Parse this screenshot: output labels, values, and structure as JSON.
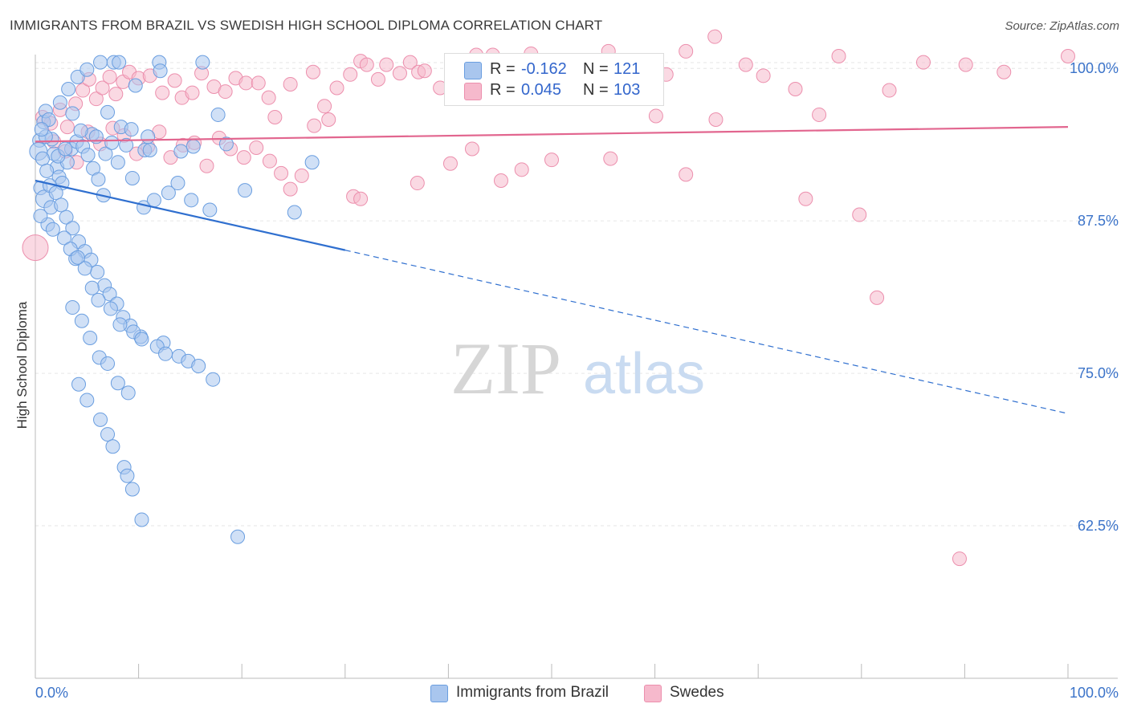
{
  "header": {
    "title": "IMMIGRANTS FROM BRAZIL VS SWEDISH HIGH SCHOOL DIPLOMA CORRELATION CHART",
    "source": "Source: ZipAtlas.com"
  },
  "watermark": {
    "zip": "ZIP",
    "atlas": "atlas"
  },
  "legend": {
    "rows": [
      {
        "r_label": "R =",
        "r_value": "-0.162",
        "n_label": "N =",
        "n_value": "121"
      },
      {
        "r_label": "R =",
        "r_value": "0.045",
        "n_label": "N =",
        "n_value": "103"
      }
    ]
  },
  "chart_data": {
    "type": "scatter",
    "ylabel": "High School Diploma",
    "xlabel": "",
    "xlim": [
      0,
      100
    ],
    "ylim": [
      50,
      101
    ],
    "x_tick_labels": [
      "0.0%",
      "100.0%"
    ],
    "y_ticks": [
      100,
      87.5,
      75,
      62.5
    ],
    "y_tick_labels": [
      "100.0%",
      "87.5%",
      "75.0%",
      "62.5%"
    ],
    "grid": true,
    "colors": {
      "blue_fill": "#a9c6ee",
      "blue_stroke": "#6a9ee0",
      "blue_line": "#2f6fcf",
      "pink_fill": "#f6b9cc",
      "pink_stroke": "#ec8fad",
      "pink_line": "#e2668f",
      "grid": "#e6e6e6",
      "tick_text": "#3b73c9"
    },
    "series": [
      {
        "name": "Immigrants from Brazil",
        "trend": {
          "x": [
            0,
            30
          ],
          "y": [
            90.8,
            85.1
          ],
          "dashed_to": [
            100,
            71.7
          ]
        },
        "points": [
          [
            0.4,
            94.1
          ],
          [
            0.8,
            95.6
          ],
          [
            1.0,
            96.5
          ],
          [
            1.3,
            95.8
          ],
          [
            1.6,
            94.2
          ],
          [
            1.8,
            93.0
          ],
          [
            2.1,
            91.9
          ],
          [
            2.3,
            91.1
          ],
          [
            0.5,
            90.2
          ],
          [
            0.9,
            89.3
          ],
          [
            1.5,
            88.6
          ],
          [
            2.6,
            90.6
          ],
          [
            3.1,
            92.3
          ],
          [
            3.5,
            93.4
          ],
          [
            4.0,
            94.0
          ],
          [
            4.6,
            93.6
          ],
          [
            5.1,
            92.9
          ],
          [
            5.6,
            91.8
          ],
          [
            6.1,
            90.9
          ],
          [
            6.6,
            89.6
          ],
          [
            0.3,
            93.2
          ],
          [
            0.7,
            92.6
          ],
          [
            1.1,
            91.6
          ],
          [
            1.4,
            90.4
          ],
          [
            2.0,
            89.8
          ],
          [
            2.5,
            88.8
          ],
          [
            3.0,
            87.8
          ],
          [
            3.6,
            86.9
          ],
          [
            4.2,
            85.8
          ],
          [
            4.8,
            85.0
          ],
          [
            5.4,
            84.3
          ],
          [
            6.0,
            83.3
          ],
          [
            6.7,
            82.2
          ],
          [
            7.2,
            81.5
          ],
          [
            7.9,
            80.7
          ],
          [
            8.5,
            79.6
          ],
          [
            9.2,
            78.9
          ],
          [
            10.2,
            78.0
          ],
          [
            12.4,
            77.5
          ],
          [
            13.9,
            76.4
          ],
          [
            2.4,
            97.2
          ],
          [
            3.2,
            98.3
          ],
          [
            4.1,
            99.3
          ],
          [
            5.0,
            99.9
          ],
          [
            6.3,
            100.5
          ],
          [
            7.6,
            100.5
          ],
          [
            8.1,
            100.5
          ],
          [
            12.0,
            100.5
          ],
          [
            16.2,
            100.5
          ],
          [
            9.7,
            98.6
          ],
          [
            12.1,
            99.8
          ],
          [
            7.0,
            96.4
          ],
          [
            8.3,
            95.2
          ],
          [
            9.3,
            95.0
          ],
          [
            10.6,
            93.3
          ],
          [
            11.1,
            93.3
          ],
          [
            14.1,
            93.2
          ],
          [
            15.3,
            93.6
          ],
          [
            18.5,
            93.8
          ],
          [
            17.7,
            96.2
          ],
          [
            3.9,
            84.4
          ],
          [
            4.8,
            83.6
          ],
          [
            5.5,
            82.0
          ],
          [
            6.1,
            81.0
          ],
          [
            7.3,
            80.3
          ],
          [
            8.2,
            79.0
          ],
          [
            9.5,
            78.4
          ],
          [
            10.3,
            77.8
          ],
          [
            11.8,
            77.2
          ],
          [
            12.6,
            76.6
          ],
          [
            14.8,
            76.0
          ],
          [
            15.8,
            75.6
          ],
          [
            17.2,
            74.5
          ],
          [
            3.6,
            80.4
          ],
          [
            4.5,
            79.3
          ],
          [
            5.3,
            77.9
          ],
          [
            6.2,
            76.3
          ],
          [
            7.0,
            75.8
          ],
          [
            8.0,
            74.2
          ],
          [
            9.0,
            73.4
          ],
          [
            4.2,
            74.1
          ],
          [
            5.0,
            72.8
          ],
          [
            6.3,
            71.2
          ],
          [
            7.0,
            70.0
          ],
          [
            7.5,
            69.0
          ],
          [
            8.6,
            67.3
          ],
          [
            8.9,
            66.6
          ],
          [
            9.4,
            65.5
          ],
          [
            10.3,
            63.0
          ],
          [
            19.6,
            61.6
          ],
          [
            5.5,
            94.6
          ],
          [
            6.8,
            93.0
          ],
          [
            8.0,
            92.3
          ],
          [
            9.4,
            91.0
          ],
          [
            10.5,
            88.6
          ],
          [
            11.5,
            89.2
          ],
          [
            12.9,
            89.8
          ],
          [
            13.8,
            90.6
          ],
          [
            15.1,
            89.2
          ],
          [
            16.9,
            88.4
          ],
          [
            20.3,
            90.0
          ],
          [
            25.1,
            88.2
          ],
          [
            26.8,
            92.3
          ],
          [
            2.8,
            86.1
          ],
          [
            3.4,
            85.2
          ],
          [
            4.1,
            84.5
          ],
          [
            1.2,
            87.2
          ],
          [
            1.7,
            86.8
          ],
          [
            0.5,
            87.9
          ],
          [
            2.2,
            92.8
          ],
          [
            2.9,
            93.4
          ],
          [
            1.0,
            94.4
          ],
          [
            0.6,
            95.0
          ],
          [
            3.6,
            96.3
          ],
          [
            4.4,
            94.9
          ],
          [
            5.9,
            94.4
          ],
          [
            7.4,
            93.9
          ],
          [
            8.8,
            93.7
          ],
          [
            10.9,
            94.4
          ]
        ]
      },
      {
        "name": "Swedes",
        "trend": {
          "x": [
            0,
            100
          ],
          "y": [
            94.0,
            95.2
          ]
        },
        "points": [
          [
            0.7,
            96.0
          ],
          [
            1.5,
            95.5
          ],
          [
            2.4,
            96.6
          ],
          [
            3.1,
            95.2
          ],
          [
            3.9,
            97.1
          ],
          [
            4.6,
            98.2
          ],
          [
            5.2,
            99.1
          ],
          [
            5.9,
            97.5
          ],
          [
            6.5,
            98.4
          ],
          [
            7.2,
            99.3
          ],
          [
            7.8,
            97.9
          ],
          [
            8.5,
            98.9
          ],
          [
            9.1,
            99.7
          ],
          [
            10.0,
            99.2
          ],
          [
            11.1,
            99.4
          ],
          [
            12.3,
            98.0
          ],
          [
            13.5,
            99.0
          ],
          [
            14.2,
            97.6
          ],
          [
            15.2,
            98.0
          ],
          [
            16.1,
            99.6
          ],
          [
            17.3,
            98.5
          ],
          [
            18.4,
            98.1
          ],
          [
            19.4,
            99.2
          ],
          [
            20.4,
            98.8
          ],
          [
            21.6,
            98.8
          ],
          [
            22.6,
            97.6
          ],
          [
            23.2,
            96.0
          ],
          [
            24.7,
            98.7
          ],
          [
            26.9,
            99.7
          ],
          [
            28.4,
            95.8
          ],
          [
            29.2,
            98.4
          ],
          [
            30.5,
            99.5
          ],
          [
            31.5,
            100.6
          ],
          [
            32.1,
            100.3
          ],
          [
            33.2,
            99.1
          ],
          [
            34.0,
            100.3
          ],
          [
            35.3,
            99.6
          ],
          [
            36.3,
            100.5
          ],
          [
            37.1,
            99.7
          ],
          [
            37.7,
            99.8
          ],
          [
            39.2,
            98.4
          ],
          [
            41.0,
            100.3
          ],
          [
            42.7,
            101.1
          ],
          [
            44.3,
            101.1
          ],
          [
            46.8,
            99.5
          ],
          [
            48.0,
            101.2
          ],
          [
            51.0,
            98.6
          ],
          [
            55.5,
            101.4
          ],
          [
            61.1,
            99.5
          ],
          [
            63.0,
            101.4
          ],
          [
            65.8,
            102.6
          ],
          [
            68.8,
            100.3
          ],
          [
            70.5,
            99.4
          ],
          [
            73.6,
            98.3
          ],
          [
            75.9,
            96.2
          ],
          [
            77.8,
            101.0
          ],
          [
            82.7,
            98.2
          ],
          [
            86.0,
            100.5
          ],
          [
            90.1,
            100.3
          ],
          [
            93.8,
            99.7
          ],
          [
            100.0,
            101.0
          ],
          [
            1.8,
            94.0
          ],
          [
            2.9,
            93.2
          ],
          [
            4.0,
            92.3
          ],
          [
            5.1,
            94.8
          ],
          [
            6.3,
            93.8
          ],
          [
            7.5,
            95.1
          ],
          [
            8.6,
            94.5
          ],
          [
            9.8,
            93.0
          ],
          [
            10.9,
            93.6
          ],
          [
            12.0,
            94.8
          ],
          [
            13.1,
            92.7
          ],
          [
            14.3,
            93.7
          ],
          [
            15.4,
            93.9
          ],
          [
            16.6,
            92.0
          ],
          [
            17.8,
            94.3
          ],
          [
            18.9,
            93.4
          ],
          [
            20.2,
            92.7
          ],
          [
            21.4,
            93.5
          ],
          [
            22.7,
            92.4
          ],
          [
            23.8,
            91.4
          ],
          [
            24.7,
            90.1
          ],
          [
            25.8,
            91.2
          ],
          [
            27.0,
            95.3
          ],
          [
            28.0,
            96.9
          ],
          [
            30.8,
            89.5
          ],
          [
            31.5,
            89.3
          ],
          [
            37.0,
            90.6
          ],
          [
            40.2,
            92.2
          ],
          [
            42.3,
            93.4
          ],
          [
            45.1,
            90.8
          ],
          [
            47.1,
            91.7
          ],
          [
            50.0,
            92.5
          ],
          [
            55.7,
            92.6
          ],
          [
            60.1,
            96.1
          ],
          [
            63.0,
            91.3
          ],
          [
            65.9,
            95.8
          ],
          [
            74.6,
            89.3
          ],
          [
            79.8,
            88.0
          ],
          [
            81.5,
            81.2
          ],
          [
            89.5,
            59.8
          ],
          [
            0.0,
            85.3
          ]
        ]
      }
    ]
  },
  "bottom_legend": {
    "items": [
      {
        "label": "Immigrants from Brazil"
      },
      {
        "label": "Swedes"
      }
    ]
  }
}
